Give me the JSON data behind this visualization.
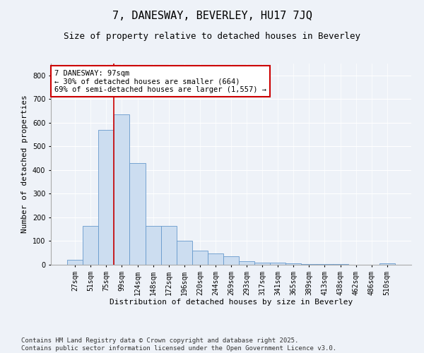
{
  "title": "7, DANESWAY, BEVERLEY, HU17 7JQ",
  "subtitle": "Size of property relative to detached houses in Beverley",
  "xlabel": "Distribution of detached houses by size in Beverley",
  "ylabel": "Number of detached properties",
  "categories": [
    "27sqm",
    "51sqm",
    "75sqm",
    "99sqm",
    "124sqm",
    "148sqm",
    "172sqm",
    "196sqm",
    "220sqm",
    "244sqm",
    "269sqm",
    "293sqm",
    "317sqm",
    "341sqm",
    "365sqm",
    "389sqm",
    "413sqm",
    "438sqm",
    "462sqm",
    "486sqm",
    "510sqm"
  ],
  "values": [
    20,
    165,
    570,
    635,
    430,
    165,
    165,
    100,
    60,
    48,
    35,
    15,
    10,
    8,
    5,
    4,
    3,
    2,
    1,
    1,
    5
  ],
  "bar_color": "#ccddf0",
  "bar_edge_color": "#6699cc",
  "highlight_line_color": "#cc0000",
  "annotation_text": "7 DANESWAY: 97sqm\n← 30% of detached houses are smaller (664)\n69% of semi-detached houses are larger (1,557) →",
  "annotation_box_color": "#ffffff",
  "annotation_box_edge_color": "#cc0000",
  "ylim": [
    0,
    850
  ],
  "yticks": [
    0,
    100,
    200,
    300,
    400,
    500,
    600,
    700,
    800
  ],
  "footer_line1": "Contains HM Land Registry data © Crown copyright and database right 2025.",
  "footer_line2": "Contains public sector information licensed under the Open Government Licence v3.0.",
  "background_color": "#eef2f8",
  "plot_background_color": "#eef2f8",
  "grid_color": "#ffffff",
  "title_fontsize": 11,
  "subtitle_fontsize": 9,
  "axis_label_fontsize": 8,
  "tick_fontsize": 7,
  "footer_fontsize": 6.5,
  "annotation_fontsize": 7.5
}
